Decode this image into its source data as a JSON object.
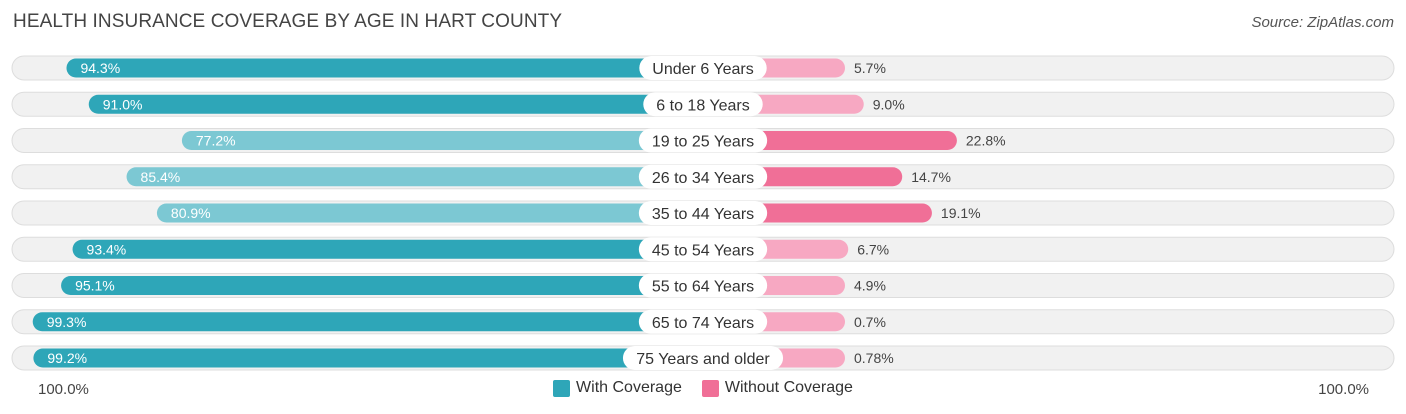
{
  "title": "HEALTH INSURANCE COVERAGE BY AGE IN HART COUNTY",
  "source": "Source: ZipAtlas.com",
  "colors": {
    "with_dark": "#2ea6b8",
    "with_light": "#7cc8d3",
    "without_dark": "#f06f97",
    "without_light": "#f7a8c2",
    "track": "#f1f1f1",
    "track_border": "#dddddd"
  },
  "axis": {
    "left_label": "100.0%",
    "right_label": "100.0%"
  },
  "legend": {
    "with": "With Coverage",
    "without": "Without Coverage"
  },
  "chart_data": {
    "type": "bar",
    "orientation": "horizontal-diverging",
    "title": "HEALTH INSURANCE COVERAGE BY AGE IN HART COUNTY",
    "categories": [
      "Under 6 Years",
      "6 to 18 Years",
      "19 to 25 Years",
      "26 to 34 Years",
      "35 to 44 Years",
      "45 to 54 Years",
      "55 to 64 Years",
      "65 to 74 Years",
      "75 Years and older"
    ],
    "series": [
      {
        "name": "With Coverage",
        "values": [
          94.3,
          91.0,
          77.2,
          85.4,
          80.9,
          93.4,
          95.1,
          99.3,
          99.2
        ],
        "labels": [
          "94.3%",
          "91.0%",
          "77.2%",
          "85.4%",
          "80.9%",
          "93.4%",
          "95.1%",
          "99.3%",
          "99.2%"
        ]
      },
      {
        "name": "Without Coverage",
        "values": [
          5.7,
          9.0,
          22.8,
          14.7,
          19.1,
          6.7,
          4.9,
          0.7,
          0.78
        ],
        "labels": [
          "5.7%",
          "9.0%",
          "22.8%",
          "14.7%",
          "19.1%",
          "6.7%",
          "4.9%",
          "0.7%",
          "0.78%"
        ]
      }
    ],
    "xlim": [
      0,
      100
    ],
    "legend_position": "bottom-center"
  }
}
